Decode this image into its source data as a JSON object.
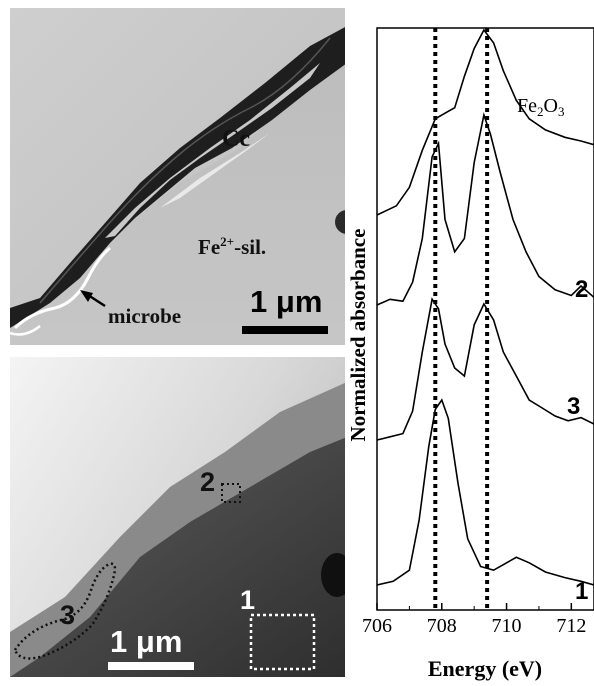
{
  "top_panel": {
    "label_cc": "Cc",
    "label_fe_sil_main": "Fe",
    "label_fe_sil_sup": "2+",
    "label_fe_sil_tail": "-sil.",
    "label_microbe": "microbe",
    "scale_bar": "1 μm"
  },
  "bottom_panel": {
    "scale_bar": "1 μm",
    "regions": [
      "1",
      "2",
      "3"
    ]
  },
  "chart_data": {
    "type": "line",
    "xlabel": "Energy (eV)",
    "ylabel": "Normalized absorbance",
    "xlim": [
      706,
      712.7
    ],
    "x_ticks": [
      706,
      708,
      710,
      712
    ],
    "y_ticks": false,
    "grid": false,
    "reference_lines_x": [
      707.8,
      709.4
    ],
    "series_labels": [
      "Fe2O3",
      "2",
      "3",
      "1"
    ],
    "label_fe2o3_main": "Fe",
    "label_fe2o3_sub1": "2",
    "label_fe2o3_mid": "O",
    "label_fe2o3_sub2": "3",
    "series": [
      {
        "name": "Fe2O3",
        "points": [
          [
            706.0,
            0.0
          ],
          [
            706.6,
            0.05
          ],
          [
            707.0,
            0.15
          ],
          [
            707.4,
            0.35
          ],
          [
            707.8,
            0.52
          ],
          [
            708.1,
            0.55
          ],
          [
            708.4,
            0.58
          ],
          [
            708.7,
            0.75
          ],
          [
            709.0,
            0.9
          ],
          [
            709.3,
            1.0
          ],
          [
            709.6,
            0.93
          ],
          [
            709.9,
            0.78
          ],
          [
            710.3,
            0.62
          ],
          [
            710.7,
            0.52
          ],
          [
            711.2,
            0.46
          ],
          [
            711.8,
            0.42
          ],
          [
            712.3,
            0.4
          ],
          [
            712.7,
            0.38
          ]
        ]
      },
      {
        "name": "2",
        "points": [
          [
            706.0,
            0.0
          ],
          [
            706.4,
            0.03
          ],
          [
            706.8,
            0.02
          ],
          [
            707.1,
            0.12
          ],
          [
            707.4,
            0.35
          ],
          [
            707.7,
            0.78
          ],
          [
            707.9,
            0.85
          ],
          [
            708.1,
            0.45
          ],
          [
            708.4,
            0.28
          ],
          [
            708.7,
            0.35
          ],
          [
            709.0,
            0.75
          ],
          [
            709.3,
            1.0
          ],
          [
            709.5,
            0.9
          ],
          [
            709.8,
            0.7
          ],
          [
            710.2,
            0.45
          ],
          [
            710.6,
            0.28
          ],
          [
            711.0,
            0.15
          ],
          [
            711.5,
            0.08
          ],
          [
            712.0,
            0.05
          ],
          [
            712.3,
            0.1
          ],
          [
            712.7,
            0.04
          ]
        ]
      },
      {
        "name": "3",
        "points": [
          [
            706.0,
            0.0
          ],
          [
            706.4,
            0.02
          ],
          [
            706.8,
            0.04
          ],
          [
            707.1,
            0.18
          ],
          [
            707.4,
            0.55
          ],
          [
            707.7,
            0.88
          ],
          [
            707.9,
            0.82
          ],
          [
            708.1,
            0.6
          ],
          [
            708.4,
            0.45
          ],
          [
            708.7,
            0.4
          ],
          [
            709.0,
            0.72
          ],
          [
            709.3,
            0.85
          ],
          [
            709.6,
            0.75
          ],
          [
            709.9,
            0.55
          ],
          [
            710.3,
            0.4
          ],
          [
            710.7,
            0.25
          ],
          [
            711.1,
            0.2
          ],
          [
            711.5,
            0.15
          ],
          [
            711.9,
            0.12
          ],
          [
            712.3,
            0.14
          ],
          [
            712.7,
            0.1
          ]
        ]
      },
      {
        "name": "1",
        "points": [
          [
            706.0,
            0.0
          ],
          [
            706.5,
            0.02
          ],
          [
            707.0,
            0.08
          ],
          [
            707.3,
            0.35
          ],
          [
            707.6,
            0.75
          ],
          [
            707.8,
            0.95
          ],
          [
            708.0,
            1.0
          ],
          [
            708.2,
            0.9
          ],
          [
            708.5,
            0.55
          ],
          [
            708.8,
            0.25
          ],
          [
            709.2,
            0.1
          ],
          [
            709.6,
            0.08
          ],
          [
            710.0,
            0.12
          ],
          [
            710.3,
            0.15
          ],
          [
            710.7,
            0.12
          ],
          [
            711.2,
            0.07
          ],
          [
            711.8,
            0.04
          ],
          [
            712.3,
            0.02
          ],
          [
            712.7,
            0.0
          ]
        ]
      }
    ]
  },
  "colors": {
    "sem_light": "#c4c4c4",
    "sem_dark": "#1a1a1a",
    "dotted_region": "#ffffff",
    "line": "#000000"
  }
}
